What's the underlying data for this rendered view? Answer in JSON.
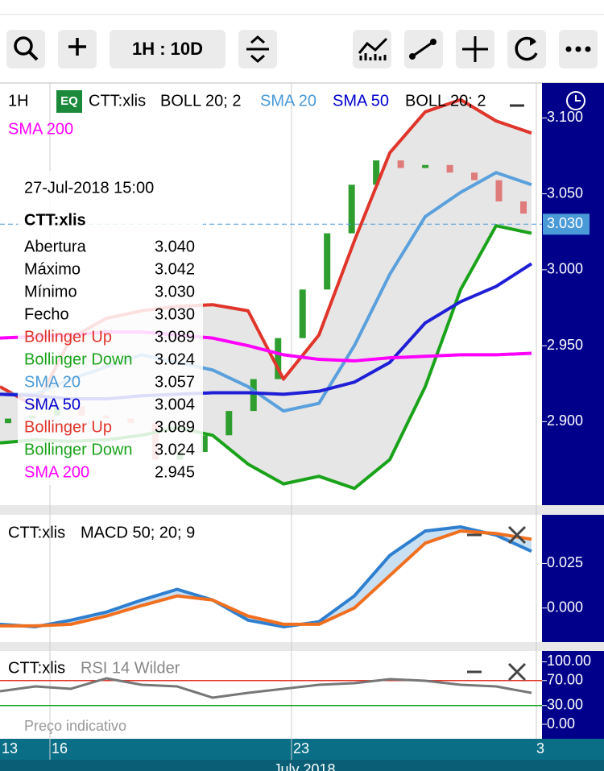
{
  "toolbar": {
    "interval": "1H : 10D"
  },
  "main_pane": {
    "interval": "1H",
    "badge": "EQ",
    "symbol": "CTT:xlis",
    "legend": [
      {
        "text": "BOLL 20; 2",
        "color": "#000000"
      },
      {
        "text": "SMA 20",
        "color": "#4a9ad8"
      },
      {
        "text": "SMA 50",
        "color": "#0000cc"
      },
      {
        "text": "BOLL 20; 2",
        "color": "#000000"
      },
      {
        "text": "SMA 200",
        "color": "#ff00ff"
      }
    ],
    "ylim": [
      2.845,
      3.123
    ],
    "yticks": [
      {
        "value": 3.1,
        "label": "3.100"
      },
      {
        "value": 3.05,
        "label": "3.050"
      },
      {
        "value": 3.0,
        "label": "3.000"
      },
      {
        "value": 2.95,
        "label": "2.950"
      },
      {
        "value": 2.9,
        "label": "2.900"
      }
    ],
    "last_price": {
      "value": 3.03,
      "label": "3.030"
    },
    "series": [
      {
        "name": "Bollinger Up",
        "color": "#e0352b",
        "values": [
          2.923,
          2.91,
          2.955,
          2.968,
          2.973,
          2.976,
          2.977,
          2.973,
          2.928,
          2.957,
          3.019,
          3.077,
          3.104,
          3.112,
          3.098,
          3.09
        ]
      },
      {
        "name": "Bollinger Down",
        "color": "#1aa31a",
        "values": [
          2.886,
          2.888,
          2.887,
          2.888,
          2.891,
          2.896,
          2.891,
          2.872,
          2.859,
          2.864,
          2.856,
          2.875,
          2.923,
          2.987,
          3.029,
          3.024
        ]
      },
      {
        "name": "SMA 20",
        "color": "#5aa0dc",
        "values": [
          2.918,
          2.918,
          2.928,
          2.936,
          2.944,
          2.939,
          2.934,
          2.923,
          2.907,
          2.912,
          2.95,
          2.997,
          3.035,
          3.051,
          3.064,
          3.056
        ]
      },
      {
        "name": "SMA 50",
        "color": "#1f1fd6",
        "values": [
          2.918,
          2.917,
          2.915,
          2.915,
          2.917,
          2.918,
          2.919,
          2.919,
          2.918,
          2.92,
          2.926,
          2.939,
          2.965,
          2.979,
          2.989,
          3.004
        ]
      },
      {
        "name": "SMA 200",
        "color": "#ff00ff",
        "values": [
          2.955,
          2.956,
          2.957,
          2.959,
          2.959,
          2.957,
          2.955,
          2.95,
          2.944,
          2.941,
          2.94,
          2.942,
          2.943,
          2.944,
          2.944,
          2.945
        ]
      }
    ],
    "candles": {
      "up_color": "#2e9e2e",
      "down_color": "#e07b7b",
      "open": [
        2.899,
        2.902,
        2.904,
        2.91,
        2.904,
        2.902,
        2.899,
        2.875,
        2.88,
        2.891,
        2.907,
        2.928,
        2.955,
        2.987,
        3.024,
        3.056,
        3.072,
        3.067,
        3.069,
        3.064,
        3.059,
        3.045
      ],
      "close": [
        2.902,
        2.904,
        2.91,
        2.904,
        2.902,
        2.899,
        2.875,
        2.88,
        2.891,
        2.907,
        2.928,
        2.955,
        2.987,
        3.024,
        3.056,
        3.072,
        3.067,
        3.069,
        3.064,
        3.059,
        3.045,
        3.037
      ]
    }
  },
  "tooltip": {
    "date": "27-Jul-2018 15:00",
    "symbol": "CTT:xlis",
    "rows": [
      {
        "label": "Abertura",
        "value": "3.040",
        "color": "#000000"
      },
      {
        "label": "Máximo",
        "value": "3.042",
        "color": "#000000"
      },
      {
        "label": "Mínimo",
        "value": "3.030",
        "color": "#000000"
      },
      {
        "label": "Fecho",
        "value": "3.030",
        "color": "#000000"
      },
      {
        "label": "Bollinger Up",
        "value": "3.089",
        "color": "#e0352b"
      },
      {
        "label": "Bollinger Down",
        "value": "3.024",
        "color": "#1aa31a"
      },
      {
        "label": "SMA 20",
        "value": "3.057",
        "color": "#4a9ad8"
      },
      {
        "label": "SMA 50",
        "value": "3.004",
        "color": "#0000cc"
      },
      {
        "label": "Bollinger Up",
        "value": "3.089",
        "color": "#e0352b"
      },
      {
        "label": "Bollinger Down",
        "value": "3.024",
        "color": "#1aa31a"
      },
      {
        "label": "SMA 200",
        "value": "2.945",
        "color": "#ff00ff"
      }
    ]
  },
  "macd_pane": {
    "symbol": "CTT:xlis",
    "indicator": "MACD 50; 20; 9",
    "ylim": [
      -0.0191,
      0.0523
    ],
    "yticks": [
      0.025,
      {
        "value": 0,
        "label": "0.000"
      }
    ],
    "series": [
      {
        "name": "MACD",
        "color": "#2f7fd0",
        "values": [
          -0.0091,
          -0.0105,
          -0.0068,
          -0.0023,
          0.0045,
          0.0105,
          0.0045,
          -0.0068,
          -0.0105,
          -0.0077,
          0.0068,
          0.0295,
          0.0432,
          0.0455,
          0.0409,
          0.0318
        ]
      },
      {
        "name": "Signal",
        "color": "#f07020",
        "values": [
          -0.01,
          -0.01,
          -0.0091,
          -0.0045,
          0.0014,
          0.0068,
          0.0045,
          -0.0045,
          -0.0091,
          -0.0091,
          0,
          0.0182,
          0.0364,
          0.0432,
          0.0418,
          0.0386
        ]
      }
    ]
  },
  "rsi_pane": {
    "symbol": "CTT:xlis",
    "indicator": "RSI 14 Wilder",
    "ylim": [
      -23.2,
      117.4
    ],
    "yticks": [
      {
        "value": 100,
        "label": "100.00"
      },
      {
        "value": 70,
        "label": "70.00"
      },
      {
        "value": 30,
        "label": "30.00"
      },
      {
        "value": 0,
        "label": "0.00"
      }
    ],
    "levels": [
      {
        "value": 70,
        "color": "#e0352b"
      },
      {
        "value": 30,
        "color": "#1aa31a"
      }
    ],
    "series": [
      {
        "name": "RSI",
        "color": "#777777",
        "values": [
          52.9,
          60.6,
          56.8,
          73.5,
          63.2,
          60.6,
          42.6,
          50.3,
          56.8,
          63.2,
          65.8,
          72.3,
          69.7,
          63.2,
          60.6,
          50.3
        ]
      }
    ],
    "note": "Preço indicativo"
  },
  "time_axis": {
    "labels": [
      "13",
      "16",
      "23",
      "3"
    ],
    "month": "July 2018"
  }
}
